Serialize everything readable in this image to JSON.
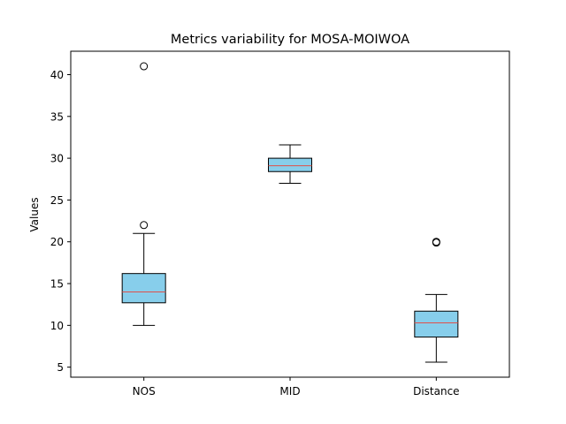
{
  "chart_data": {
    "type": "box",
    "title": "Metrics variability for MOSA-MOIWOA",
    "xlabel": "",
    "ylabel": "Values",
    "ylim": [
      3.8,
      42.8
    ],
    "yticks": [
      5,
      10,
      15,
      20,
      25,
      30,
      35,
      40
    ],
    "grid": false,
    "categories": [
      "NOS",
      "MID",
      "Distance"
    ],
    "boxes": [
      {
        "label": "NOS",
        "whisker_low": 10.0,
        "q1": 12.7,
        "median": 14.0,
        "q3": 16.2,
        "whisker_high": 21.0,
        "outliers": [
          22.0,
          41.0
        ]
      },
      {
        "label": "MID",
        "whisker_low": 27.0,
        "q1": 28.4,
        "median": 29.1,
        "q3": 30.0,
        "whisker_high": 31.6,
        "outliers": []
      },
      {
        "label": "Distance",
        "whisker_low": 5.6,
        "q1": 8.6,
        "median": 10.3,
        "q3": 11.7,
        "whisker_high": 13.7,
        "outliers": [
          19.9,
          20.0
        ]
      }
    ],
    "colors": {
      "box_fill": "#87ceeb",
      "median": "#e0504a",
      "edge": "#000000"
    }
  }
}
